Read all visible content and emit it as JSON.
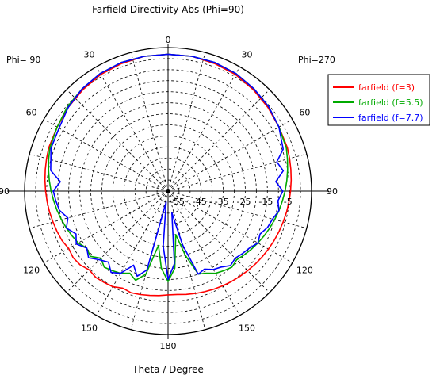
{
  "chart_data": {
    "type": "polar-line",
    "title": "Farfield Directivity Abs (Phi=90)",
    "xlabel": "Theta / Degree",
    "phi_left": "Phi= 90",
    "phi_right": "Phi=270",
    "angle_labels": [
      "0",
      "30",
      "60",
      "90",
      "120",
      "150",
      "180",
      "150",
      "120",
      "90",
      "60",
      "30"
    ],
    "radial_tick_labels": [
      "-55",
      "-45",
      "-35",
      "-25",
      "-15",
      "-5"
    ],
    "radial_range": [
      -55,
      10
    ],
    "grid": true,
    "legend_position": "top-right",
    "series": [
      {
        "name": "farfield (f=3)",
        "color": "#ff0000",
        "theta": [
          -180,
          -175,
          -170,
          -165,
          -160,
          -155,
          -150,
          -145,
          -140,
          -135,
          -130,
          -125,
          -120,
          -115,
          -110,
          -105,
          -100,
          -95,
          -90,
          -85,
          -80,
          -75,
          -70,
          -60,
          -50,
          -40,
          -30,
          -20,
          -10,
          0,
          10,
          20,
          30,
          40,
          50,
          60,
          70,
          75,
          80,
          85,
          90,
          95,
          100,
          105,
          110,
          115,
          120,
          125,
          130,
          135,
          140,
          145,
          150,
          155,
          160,
          165,
          170,
          175,
          180
        ],
        "dB": [
          -8,
          -7.5,
          -7,
          -6.5,
          -6,
          -6.5,
          -5,
          -4.5,
          -4,
          -4.5,
          -3,
          -2.5,
          -3,
          -2,
          -1.5,
          -1,
          -0.5,
          0,
          0.5,
          1,
          1.5,
          2,
          2.5,
          3,
          4,
          5,
          6,
          6.5,
          7,
          7,
          7,
          6.5,
          6,
          5,
          4,
          3,
          2.5,
          2,
          1.5,
          1,
          0.5,
          0,
          -0.5,
          -1,
          -1.5,
          -2,
          -2.5,
          -3,
          -3.5,
          -4,
          -4.5,
          -5,
          -5.5,
          -6,
          -6.5,
          -7,
          -7.5,
          -8,
          -8
        ]
      },
      {
        "name": "farfield (f=5.5)",
        "color": "#00aa00",
        "theta": [
          -180,
          -175,
          -170,
          -165,
          -160,
          -155,
          -150,
          -145,
          -140,
          -135,
          -130,
          -125,
          -120,
          -115,
          -110,
          -105,
          -100,
          -95,
          -90,
          -85,
          -80,
          -75,
          -70,
          -60,
          -50,
          -40,
          -30,
          -20,
          -10,
          0,
          10,
          20,
          30,
          40,
          50,
          60,
          70,
          75,
          80,
          85,
          90,
          95,
          100,
          105,
          110,
          115,
          120,
          125,
          130,
          135,
          140,
          145,
          150,
          155,
          160,
          165,
          170,
          175,
          180
        ],
        "dB": [
          -14,
          -20,
          -30,
          -16,
          -12,
          -14,
          -12,
          -11,
          -10,
          -12,
          -9,
          -10,
          -8,
          -7,
          -6,
          -5,
          -4,
          -3,
          -2,
          -1,
          0,
          1,
          2,
          3,
          4.5,
          5.5,
          6.5,
          7,
          7,
          7,
          7,
          7,
          6.5,
          5.5,
          4.5,
          3,
          2,
          1,
          0,
          -1,
          -2,
          -3,
          -4,
          -5,
          -6,
          -7,
          -8,
          -9,
          -10,
          -11,
          -10,
          -11,
          -12,
          -14,
          -15,
          -25,
          -35,
          -20,
          -14
        ]
      },
      {
        "name": "farfield (f=7.7)",
        "color": "#0000ff",
        "theta": [
          -180,
          -175,
          -170,
          -165,
          -160,
          -155,
          -150,
          -145,
          -140,
          -135,
          -130,
          -125,
          -120,
          -115,
          -110,
          -105,
          -100,
          -95,
          -90,
          -85,
          -80,
          -75,
          -70,
          -60,
          -50,
          -40,
          -30,
          -20,
          -10,
          0,
          10,
          20,
          30,
          40,
          50,
          60,
          70,
          75,
          80,
          85,
          90,
          95,
          100,
          105,
          110,
          115,
          120,
          125,
          130,
          135,
          140,
          145,
          150,
          155,
          160,
          165,
          170,
          175,
          180
        ],
        "dB": [
          -15,
          -30,
          -50,
          -18,
          -14,
          -18,
          -12,
          -10,
          -13,
          -11,
          -8,
          -10,
          -7,
          -9,
          -6,
          -8,
          -5,
          -4,
          -3,
          -6,
          -1,
          0,
          1.5,
          2,
          4,
          5.5,
          6.5,
          7,
          7,
          7,
          7,
          7,
          6.5,
          5.5,
          4.5,
          3,
          0.5,
          -4,
          -2,
          -6,
          -3,
          -5,
          -4,
          -6,
          -7,
          -9,
          -8,
          -10,
          -11,
          -12,
          -11,
          -13,
          -14,
          -16,
          -15,
          -30,
          -45,
          -22,
          -15
        ]
      }
    ]
  }
}
